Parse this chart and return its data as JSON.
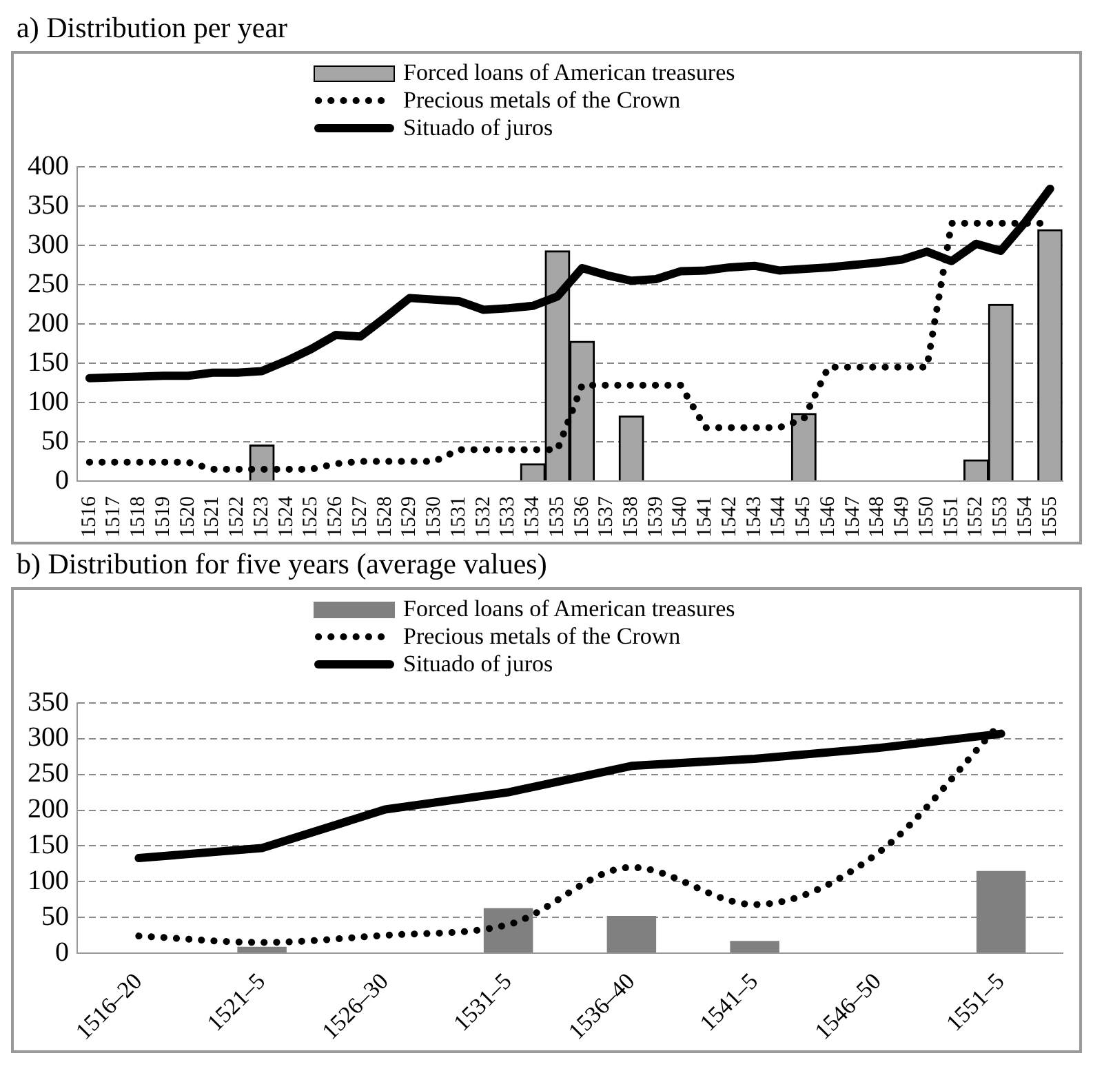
{
  "chart_data": [
    {
      "type": "bar",
      "title": "a)  Distribution per year",
      "categories": [
        "1516",
        "1517",
        "1518",
        "1519",
        "1520",
        "1521",
        "1522",
        "1523",
        "1524",
        "1525",
        "1526",
        "1527",
        "1528",
        "1529",
        "1530",
        "1531",
        "1532",
        "1533",
        "1534",
        "1535",
        "1536",
        "1537",
        "1538",
        "1539",
        "1540",
        "1541",
        "1542",
        "1543",
        "1544",
        "1545",
        "1546",
        "1547",
        "1548",
        "1549",
        "1550",
        "1551",
        "1552",
        "1553",
        "1554",
        "1555"
      ],
      "series": [
        {
          "name": "Forced loans of American treasures",
          "color": "#a6a6a6",
          "values": [
            null,
            null,
            null,
            null,
            null,
            null,
            null,
            46,
            null,
            null,
            null,
            null,
            null,
            null,
            null,
            null,
            null,
            null,
            22,
            293,
            178,
            null,
            83,
            null,
            null,
            null,
            null,
            null,
            null,
            86,
            null,
            null,
            null,
            null,
            null,
            null,
            27,
            225,
            null,
            320
          ]
        },
        {
          "name": "Precious metals of the Crown",
          "type": "line",
          "line_style": "dotted",
          "color": "#000000",
          "values": [
            24,
            24,
            24,
            24,
            24,
            15,
            15,
            15,
            15,
            15,
            22,
            25,
            25,
            25,
            25,
            40,
            40,
            40,
            40,
            40,
            122,
            122,
            122,
            122,
            122,
            68,
            68,
            68,
            68,
            79,
            145,
            145,
            145,
            145,
            145,
            328,
            328,
            328,
            328,
            328
          ]
        },
        {
          "name": "Situado of juros",
          "type": "line",
          "line_style": "solid",
          "color": "#000000",
          "values": [
            131,
            132,
            133,
            134,
            134,
            138,
            138,
            140,
            153,
            168,
            186,
            184,
            208,
            233,
            231,
            229,
            218,
            220,
            223,
            235,
            271,
            262,
            255,
            257,
            267,
            268,
            272,
            274,
            268,
            270,
            272,
            275,
            278,
            282,
            292,
            280,
            302,
            293,
            330,
            372
          ]
        }
      ],
      "ylim": [
        0,
        400
      ],
      "yticks": [
        0,
        50,
        100,
        150,
        200,
        250,
        300,
        350,
        400
      ],
      "grid": "y",
      "legend": "top",
      "marker": "none"
    },
    {
      "type": "bar",
      "title": "b)  Distribution for five years (average values)",
      "categories": [
        "1516–20",
        "1521–5",
        "1526–30",
        "1531–5",
        "1536–40",
        "1541–5",
        "1546–50",
        "1551–5"
      ],
      "series": [
        {
          "name": "Forced loans of American treasures",
          "color": "#808080",
          "values": [
            null,
            9,
            null,
            63,
            52,
            17,
            null,
            115
          ]
        },
        {
          "name": "Precious metals of the Crown",
          "type": "line",
          "line_style": "dotted",
          "color": "#000000",
          "values": [
            24,
            15,
            25,
            40,
            120,
            68,
            140,
            322
          ]
        },
        {
          "name": "Situado of juros",
          "type": "line",
          "line_style": "solid",
          "color": "#000000",
          "values": [
            133,
            147,
            201,
            225,
            262,
            272,
            287,
            307
          ]
        }
      ],
      "ylim": [
        0,
        350
      ],
      "yticks": [
        0,
        50,
        100,
        150,
        200,
        250,
        300,
        350
      ],
      "grid": "y",
      "legend": "top",
      "marker": "none"
    }
  ]
}
